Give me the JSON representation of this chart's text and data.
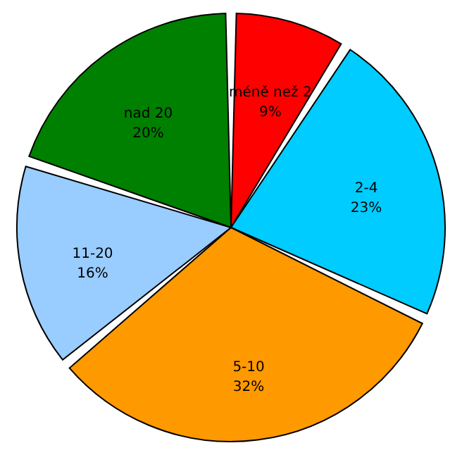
{
  "chart_data": {
    "type": "pie",
    "categories": [
      "méně než 2",
      "2-4",
      "5-10",
      "11-20",
      "nad 20"
    ],
    "values": [
      9,
      23,
      32,
      16,
      20
    ],
    "value_labels": [
      "9%",
      "23%",
      "32%",
      "16%",
      "20%"
    ],
    "colors": [
      "#ff0000",
      "#00ccff",
      "#ff9900",
      "#99ccff",
      "#008000"
    ]
  }
}
